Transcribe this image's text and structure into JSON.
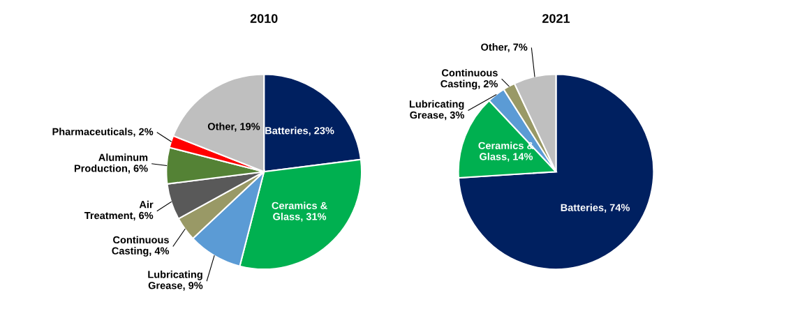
{
  "chart_data": [
    {
      "type": "pie",
      "title": "2010",
      "categories": [
        "Batteries",
        "Ceramics & Glass",
        "Lubricating Grease",
        "Continuous Casting",
        "Air Treatment",
        "Aluminum Production",
        "Pharmaceuticals",
        "Other"
      ],
      "values": [
        23,
        31,
        9,
        4,
        6,
        6,
        2,
        19
      ],
      "colors": [
        "#002060",
        "#00b050",
        "#5b9bd5",
        "#999966",
        "#595959",
        "#548235",
        "#ff0000",
        "#bfbfbf"
      ],
      "value_labels": [
        "23%",
        "31%",
        "9%",
        "4%",
        "6%",
        "6%",
        "2%",
        "19%"
      ]
    },
    {
      "type": "pie",
      "title": "2021",
      "categories": [
        "Batteries",
        "Ceramics & Glass",
        "Lubricating Grease",
        "Continuous Casting",
        "Other"
      ],
      "values": [
        74,
        14,
        3,
        2,
        7
      ],
      "colors": [
        "#002060",
        "#00b050",
        "#5b9bd5",
        "#999966",
        "#bfbfbf"
      ],
      "value_labels": [
        "74%",
        "14%",
        "3%",
        "2%",
        "7%"
      ]
    }
  ]
}
